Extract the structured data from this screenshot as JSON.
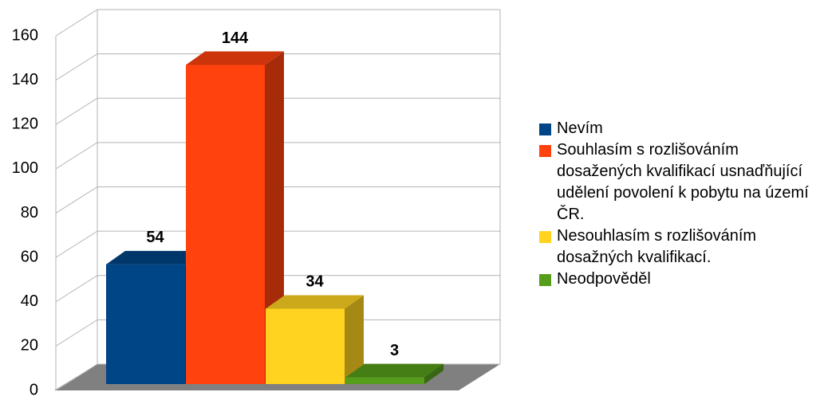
{
  "chart_data": {
    "type": "bar3d",
    "categories": [
      null
    ],
    "series": [
      {
        "name": "Nevím",
        "color": "#004586",
        "values": [
          54
        ]
      },
      {
        "name": "Souhlasím s rozlišováním dosažených kvalifikací usnaďňující udělení povolení k pobytu na území ČR.",
        "color": "#ff420e",
        "values": [
          144
        ]
      },
      {
        "name": "Nesouhlasím s rozlišováním dosažných kvalifikací.",
        "color": "#ffd320",
        "values": [
          34
        ]
      },
      {
        "name": "Neodpověděl",
        "color": "#579d1c",
        "values": [
          3
        ]
      }
    ],
    "ylim": [
      0,
      160
    ],
    "yticks": [
      0,
      20,
      40,
      60,
      80,
      100,
      120,
      140,
      160
    ],
    "grid": true,
    "legend": "right"
  }
}
